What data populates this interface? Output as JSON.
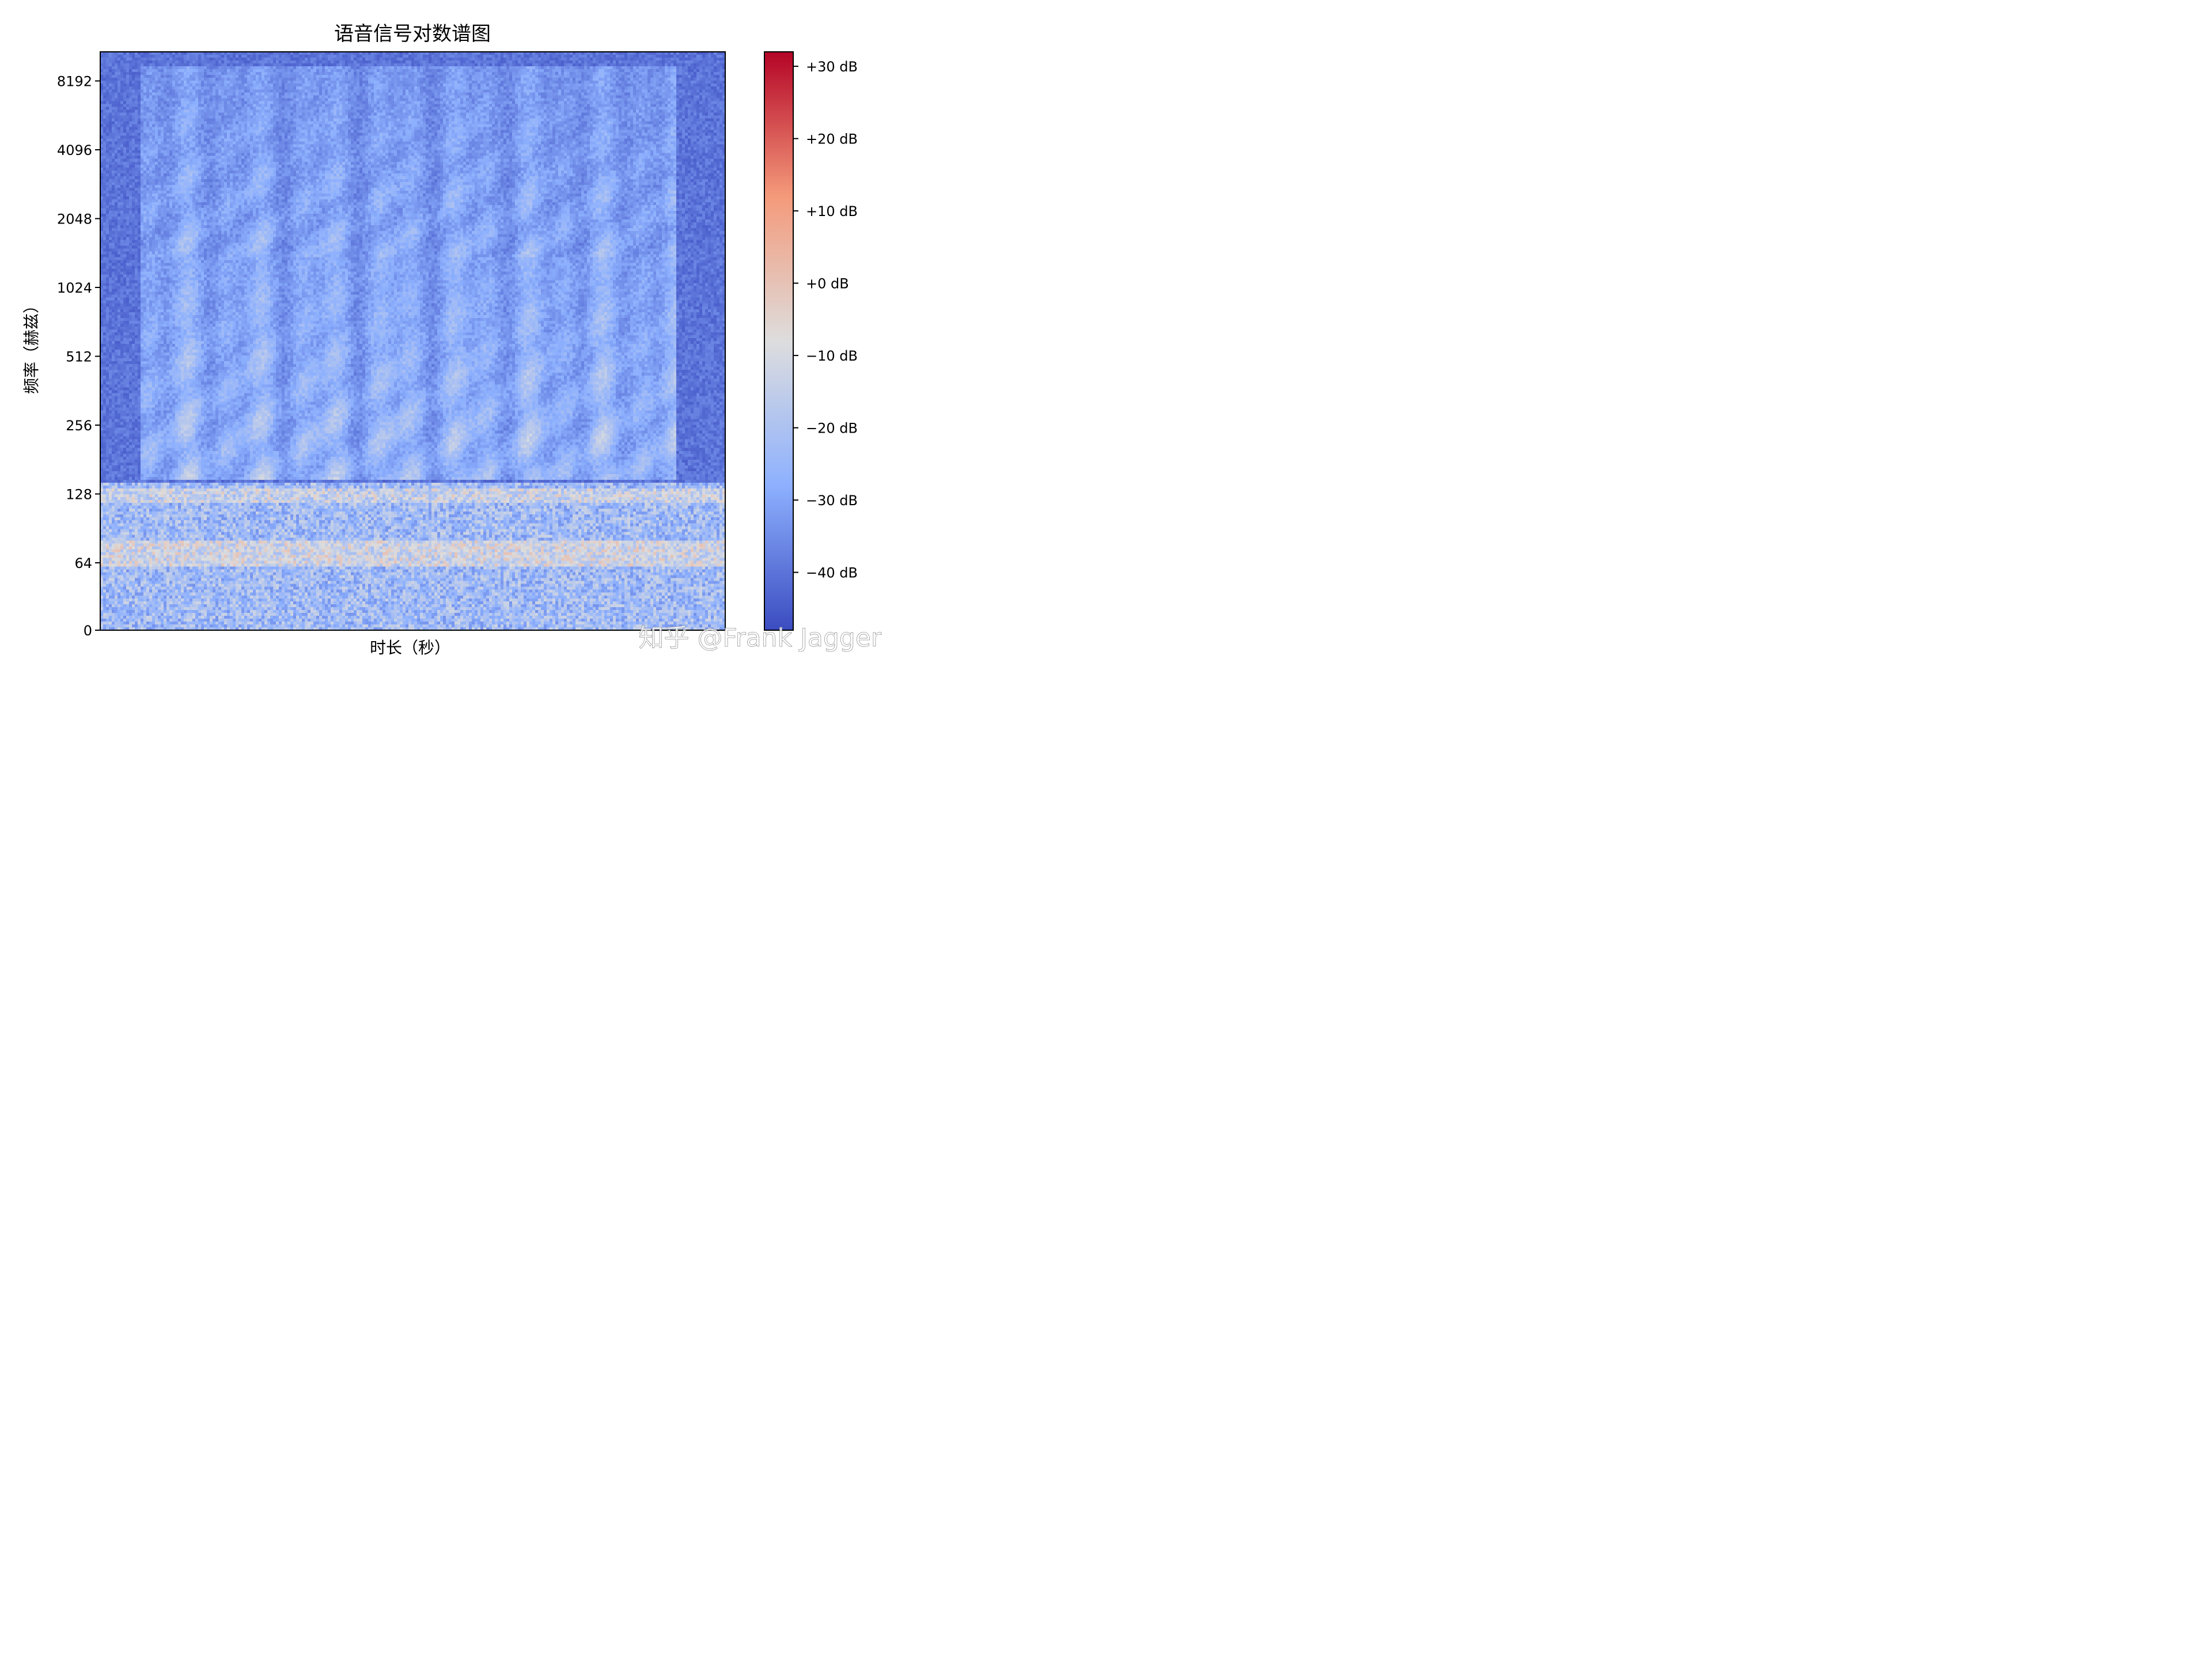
{
  "chart_data": {
    "type": "heatmap",
    "title": "语音信号对数谱图",
    "xlabel": "时长（秒）",
    "ylabel": "频率（赫兹）",
    "x_tick_labels": [],
    "y_scale": "symlog",
    "y_ticks": [
      {
        "value": 0,
        "label": "0"
      },
      {
        "value": 64,
        "label": "64"
      },
      {
        "value": 128,
        "label": "128"
      },
      {
        "value": 256,
        "label": "256"
      },
      {
        "value": 512,
        "label": "512"
      },
      {
        "value": 1024,
        "label": "1024"
      },
      {
        "value": 2048,
        "label": "2048"
      },
      {
        "value": 4096,
        "label": "4096"
      },
      {
        "value": 8192,
        "label": "8192"
      }
    ],
    "colormap": "coolwarm",
    "colorbar": {
      "range": [
        -48,
        32
      ],
      "ticks": [
        {
          "value": 30,
          "label": "+30 dB"
        },
        {
          "value": 20,
          "label": "+20 dB"
        },
        {
          "value": 10,
          "label": "+10 dB"
        },
        {
          "value": 0,
          "label": "+0 dB"
        },
        {
          "value": -10,
          "label": "−10 dB"
        },
        {
          "value": -20,
          "label": "−20 dB"
        },
        {
          "value": -30,
          "label": "−30 dB"
        },
        {
          "value": -40,
          "label": "−40 dB"
        }
      ]
    },
    "colors": {
      "low": "#3b4cc0",
      "mid": "#dddddd",
      "high": "#b40426"
    }
  },
  "watermark": "知乎 @Frank Jagger"
}
